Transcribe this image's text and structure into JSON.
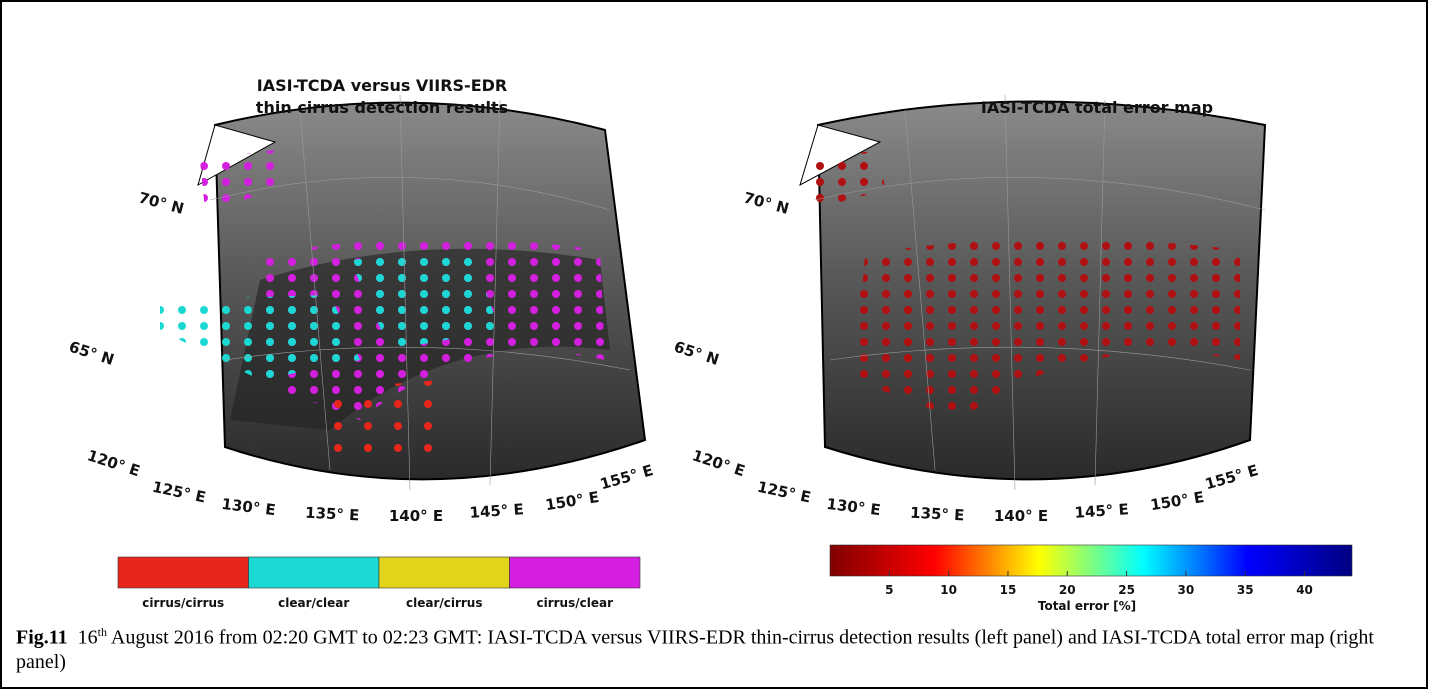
{
  "left_panel": {
    "title_lines": [
      "IASI-TCDA versus VIIRS-EDR",
      "thin cirrus detection results"
    ],
    "latitude_labels": [
      "70° N",
      "65° N"
    ],
    "longitude_labels": [
      "120° E",
      "125° E",
      "130° E",
      "135° E",
      "140° E",
      "145° E",
      "150° E",
      "155° E"
    ],
    "legend": [
      {
        "label": "cirrus/cirrus",
        "color": "#e8261c"
      },
      {
        "label": "clear/clear",
        "color": "#1cd8d2"
      },
      {
        "label": "clear/cirrus",
        "color": "#e2d41a"
      },
      {
        "label": "cirrus/clear",
        "color": "#d41ee0"
      }
    ]
  },
  "right_panel": {
    "title": "IASI-TCDA total error map",
    "latitude_labels": [
      "70° N",
      "65° N"
    ],
    "longitude_labels": [
      "120° E",
      "125° E",
      "130° E",
      "135° E",
      "140° E",
      "145° E",
      "150° E",
      "155° E"
    ],
    "colorbar": {
      "label": "Total error [%]",
      "range": [
        0,
        44
      ],
      "ticks": [
        5,
        10,
        15,
        20,
        25,
        30,
        35,
        40
      ],
      "colormap": [
        "#800000",
        "#ff0000",
        "#ffff00",
        "#00ffff",
        "#0000ff",
        "#000080"
      ]
    }
  },
  "caption": {
    "label": "Fig.11",
    "day": "16",
    "day_suffix": "th",
    "text": " August 2016 from 02:20 GMT to 02:23 GMT: IASI-TCDA versus VIIRS-EDR thin-cirrus detection results (left panel) and IASI-TCDA total error map (right panel)"
  }
}
